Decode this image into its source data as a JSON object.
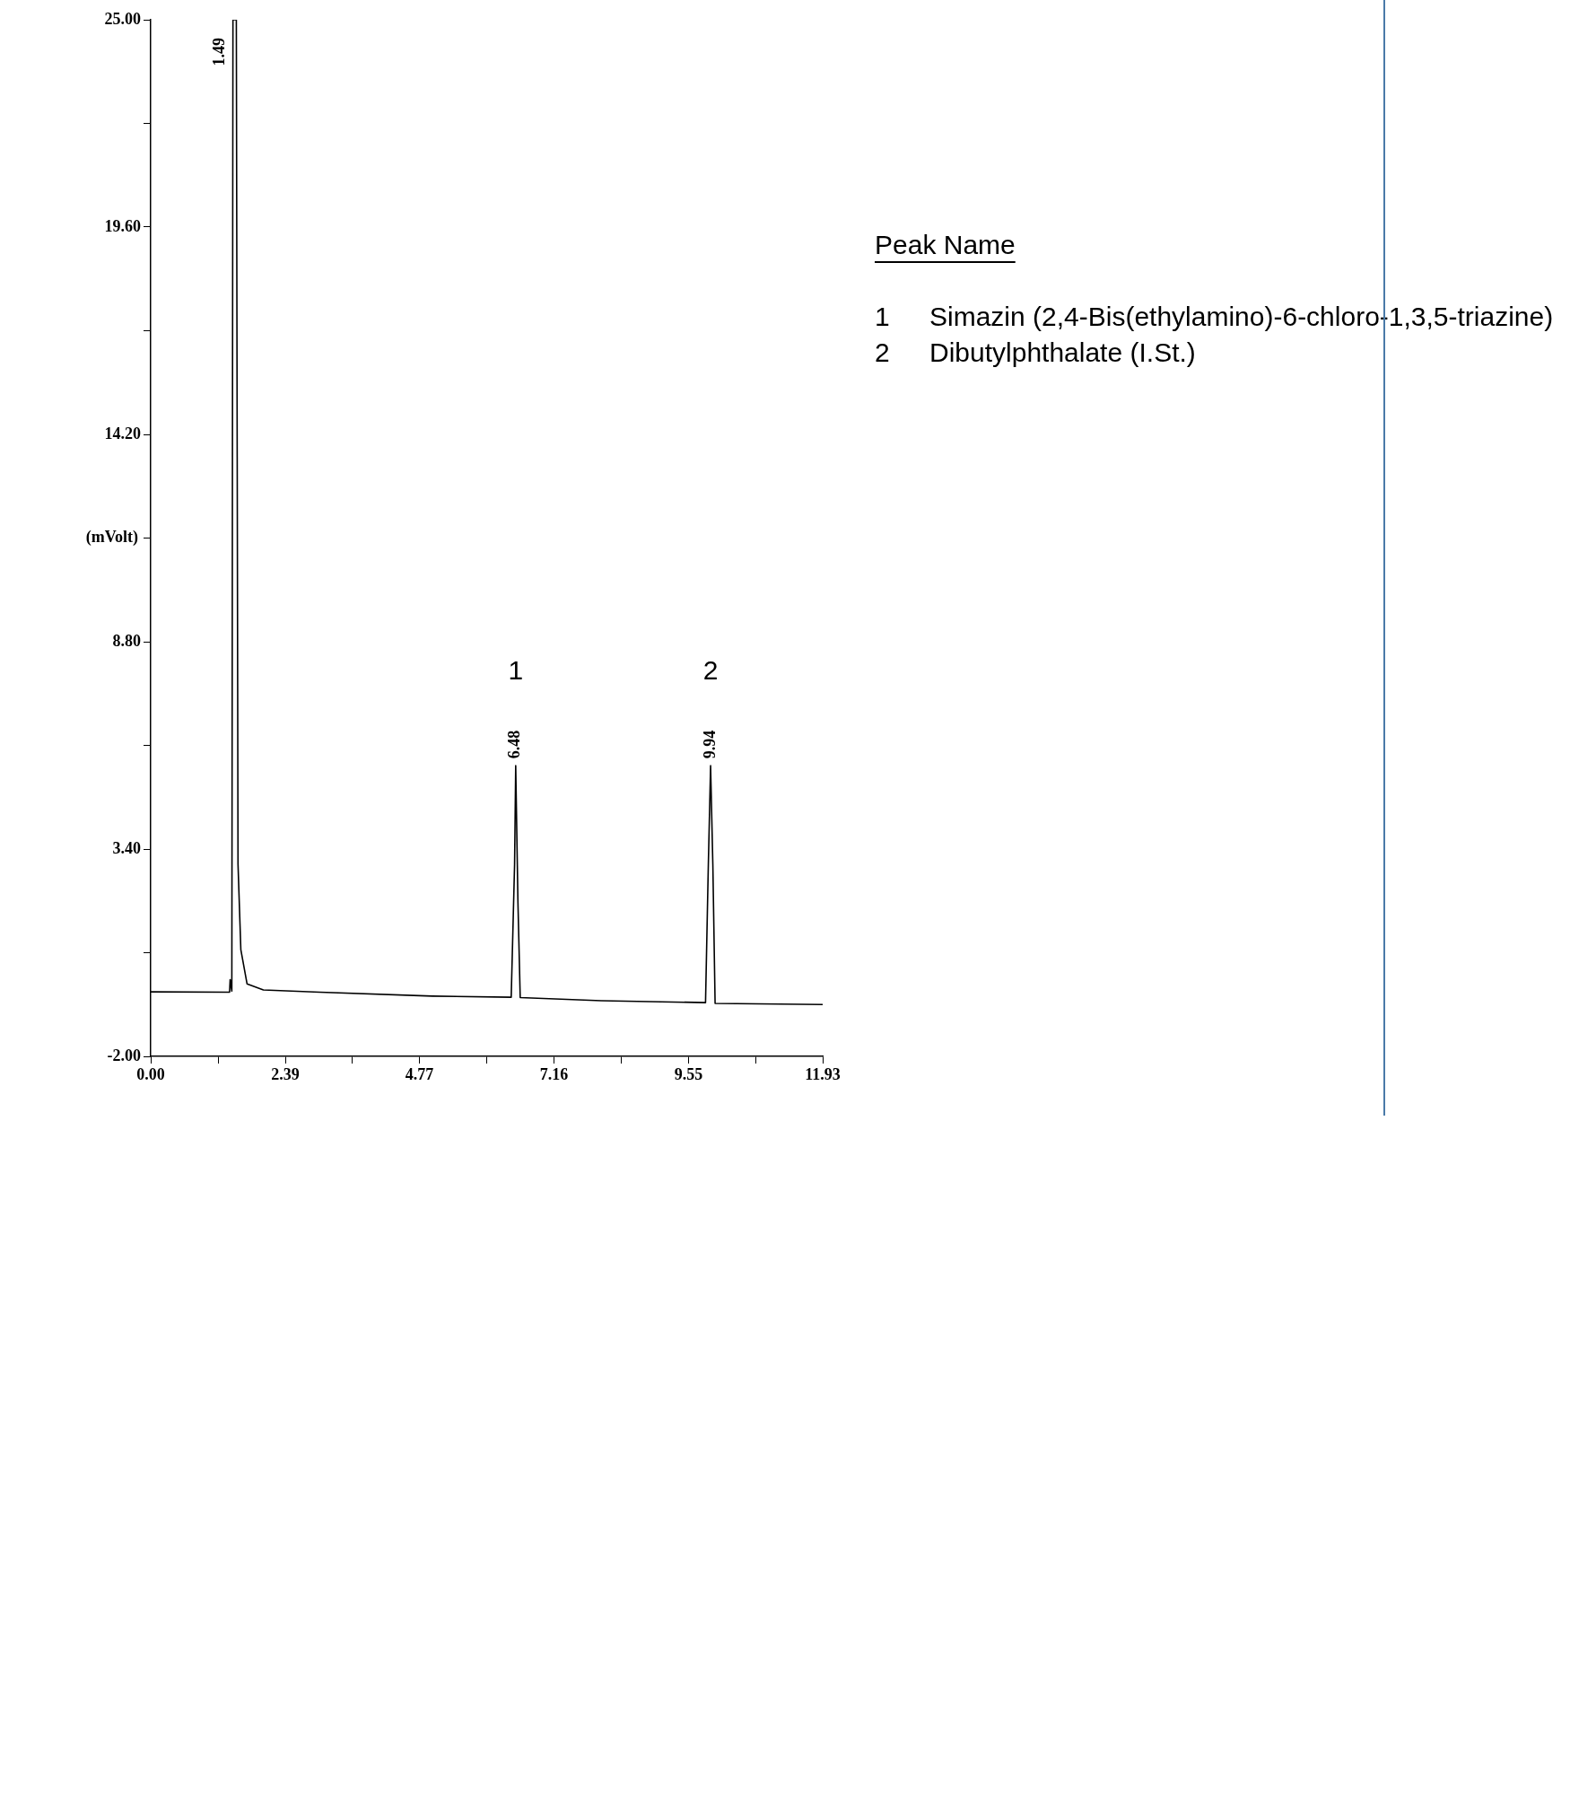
{
  "chart_data": {
    "type": "line",
    "ylabel": "(mVolt)",
    "x": [
      0,
      1.4,
      1.41,
      1.44,
      1.46,
      1.52,
      1.55,
      1.6,
      1.71,
      2.0,
      3.0,
      5.0,
      6.4,
      6.46,
      6.48,
      6.52,
      6.56,
      8.0,
      9.85,
      9.9,
      9.94,
      9.98,
      10.02,
      11.93
    ],
    "series": [
      {
        "color": "#000000",
        "values": [
          -0.32,
          -0.33,
          0.0,
          -0.3,
          25,
          25,
          3,
          0.78,
          -0.11,
          -0.27,
          -0.33,
          -0.43,
          -0.46,
          3,
          5.57,
          2,
          -0.47,
          -0.55,
          -0.6,
          3,
          5.57,
          3,
          -0.62,
          -0.65
        ]
      }
    ],
    "xlim": [
      0,
      11.93
    ],
    "xticks": [
      {
        "value": 0,
        "label": "0.00"
      },
      {
        "value": 1.195,
        "label": null
      },
      {
        "value": 2.39,
        "label": "2.39"
      },
      {
        "value": 3.58,
        "label": null
      },
      {
        "value": 4.77,
        "label": "4.77"
      },
      {
        "value": 5.965,
        "label": null
      },
      {
        "value": 7.16,
        "label": "7.16"
      },
      {
        "value": 8.355,
        "label": null
      },
      {
        "value": 9.55,
        "label": "9.55"
      },
      {
        "value": 10.74,
        "label": null
      },
      {
        "value": 11.93,
        "label": "11.93"
      }
    ],
    "ylim": [
      -2,
      25
    ],
    "yticks": [
      {
        "value": -2,
        "label": "-2.00"
      },
      {
        "value": 0.7,
        "label": null
      },
      {
        "value": 3.4,
        "label": "3.40"
      },
      {
        "value": 6.1,
        "label": null
      },
      {
        "value": 8.8,
        "label": "8.80"
      },
      {
        "value": 11.5,
        "label": null
      },
      {
        "value": 14.2,
        "label": "14.20"
      },
      {
        "value": 16.9,
        "label": null
      },
      {
        "value": 19.6,
        "label": "19.60"
      },
      {
        "value": 22.3,
        "label": null
      },
      {
        "value": 25,
        "label": "25.00"
      }
    ],
    "grid": false,
    "legend": false,
    "marker": "none",
    "line_style": "solid",
    "annotations": [
      {
        "text": "1.49",
        "x": 1.49,
        "y": 25
      },
      {
        "text": "6.48",
        "x": 6.48,
        "y": 5.57
      },
      {
        "text": "9.94",
        "x": 9.94,
        "y": 5.57
      },
      {
        "text": "1",
        "x": 6.48,
        "y": 5.57
      },
      {
        "text": "2",
        "x": 9.94,
        "y": 5.57
      },
      "Peak Name",
      "1",
      "Simazin (2,4-Bis(ethylamino)-6-chloro-1,3,5-triazine)",
      "2",
      "Dibutylphthalate (I.St.)"
    ]
  }
}
